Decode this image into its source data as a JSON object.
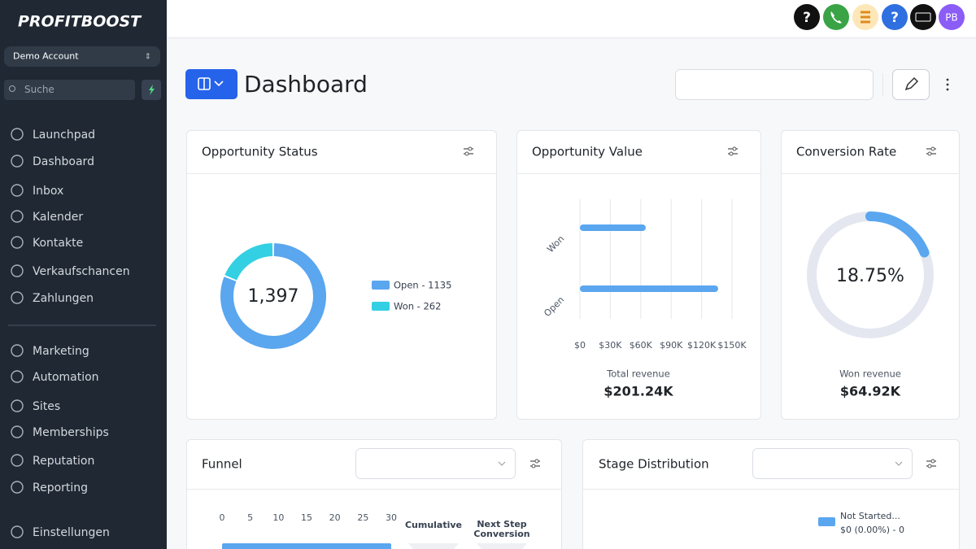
{
  "sidebar": {
    "logo": "PROFITBOOST",
    "account": "Demo Account",
    "search": "Suche",
    "nav": [
      "Launchpad",
      "Dashboard",
      "Inbox",
      "Kalender",
      "Kontakte",
      "Verkaufschancen",
      "Zahlungen"
    ],
    "nav2": [
      "Marketing",
      "Automation",
      "Sites",
      "Memberships",
      "Reputation",
      "Reporting"
    ],
    "settings": "Einstellungen"
  },
  "topbar": {
    "help": "?",
    "avatar": "PB"
  },
  "header": {
    "title": "Dashboard"
  },
  "widgets": {
    "opportunity_status": {
      "title": "Opportunity Status",
      "type": "pie",
      "center_label": "1,397",
      "labels": [
        "Open - 1135",
        "Won - 262"
      ],
      "values": [
        1135,
        262
      ],
      "colors": [
        "#5aa6ef",
        "#33d0e3"
      ]
    },
    "opportunity_value": {
      "title": "Opportunity Value",
      "type": "bar",
      "categories": [
        "Won",
        "Open"
      ],
      "values": [
        64920,
        136320
      ],
      "color": "#5aa6ef",
      "xlim": [
        0,
        150000
      ],
      "xticks": [
        {
          "value": 0,
          "label": "$0"
        },
        {
          "value": 30000,
          "label": "$30K"
        },
        {
          "value": 60000,
          "label": "$60K"
        },
        {
          "value": 90000,
          "label": "$90K"
        },
        {
          "value": 120000,
          "label": "$120K"
        },
        {
          "value": 150000,
          "label": "$150K"
        }
      ],
      "footer_label": "Total revenue",
      "footer_value": "$201.24K"
    },
    "conversion_rate": {
      "title": "Conversion Rate",
      "type": "gauge",
      "value": 18.75,
      "value_label": "18.75%",
      "color": "#5aa6ef",
      "footer_label": "Won revenue",
      "footer_value": "$64.92K"
    },
    "funnel": {
      "title": "Funnel",
      "type": "bar",
      "xlim": [
        0,
        30
      ],
      "xticks": [
        0,
        5,
        10,
        15,
        20,
        25,
        30
      ],
      "values": [
        30
      ],
      "color": "#5aa6ef",
      "columns": [
        "Cumulative",
        "Next Step Conversion"
      ]
    },
    "stage_distribution": {
      "title": "Stage Distribution",
      "legend": [
        "Not Started...",
        "$0 (0.00%) - 0"
      ],
      "color": "#5aa6ef"
    }
  }
}
